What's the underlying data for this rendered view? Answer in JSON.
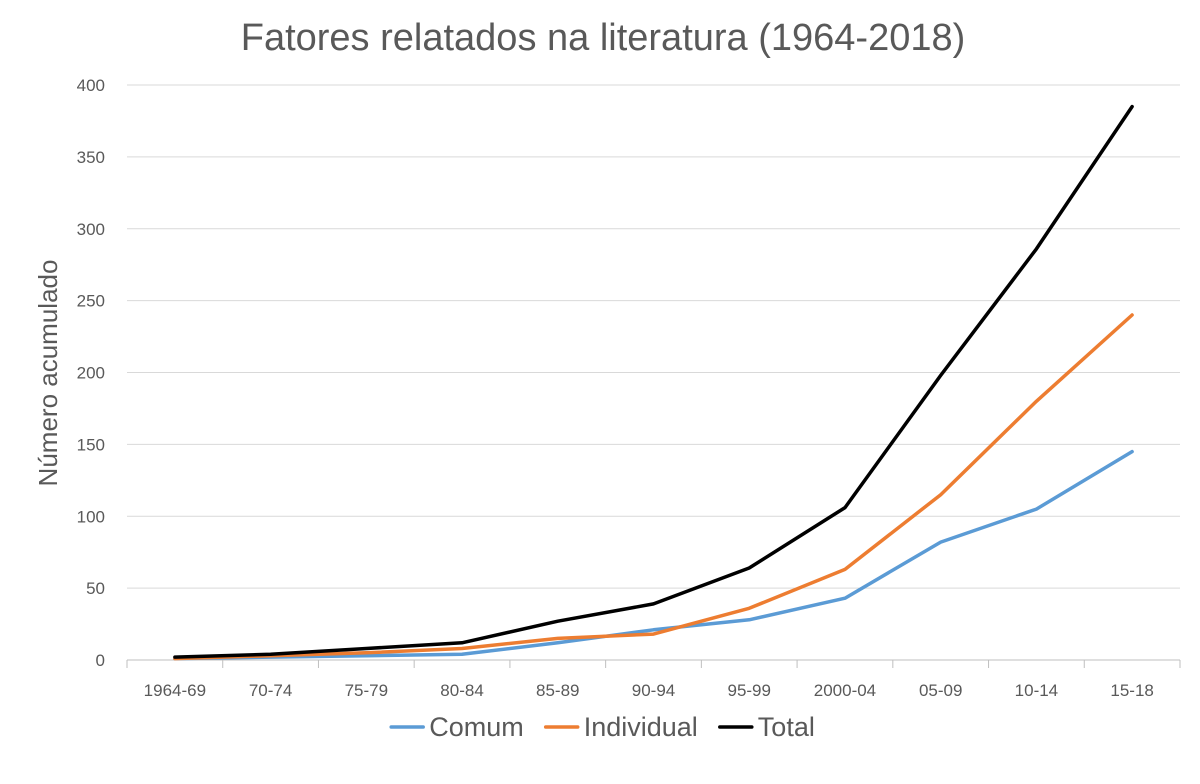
{
  "chart_data": {
    "type": "line",
    "title": "Fatores relatados na literatura (1964-2018)",
    "xlabel": "",
    "ylabel": "Número acumulado",
    "ylim": [
      0,
      400
    ],
    "yticks": [
      0,
      50,
      100,
      150,
      200,
      250,
      300,
      350,
      400
    ],
    "grid": true,
    "legend_position": "bottom",
    "categories": [
      "1964-69",
      "70-74",
      "75-79",
      "80-84",
      "85-89",
      "90-94",
      "95-99",
      "2000-04",
      "05-09",
      "10-14",
      "15-18"
    ],
    "series": [
      {
        "name": "Comum",
        "color": "#5b9bd5",
        "values": [
          1,
          2,
          3,
          4,
          12,
          21,
          28,
          43,
          82,
          105,
          145
        ]
      },
      {
        "name": "Individual",
        "color": "#ed7d31",
        "values": [
          1,
          3,
          5,
          8,
          15,
          18,
          36,
          63,
          115,
          180,
          240
        ]
      },
      {
        "name": "Total",
        "color": "#000000",
        "values": [
          2,
          4,
          8,
          12,
          27,
          39,
          64,
          106,
          198,
          286,
          385
        ]
      }
    ]
  }
}
